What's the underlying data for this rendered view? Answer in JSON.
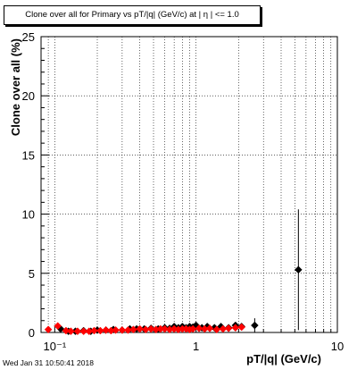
{
  "chart_data": {
    "type": "scatter",
    "title": "Clone  over all for Primary vs pT/|q| (GeV/c) at |  η | <= 1.0",
    "xlabel": "pT/|q| (GeV/c)",
    "ylabel": "Clone  over all (%)",
    "x_scale": "log",
    "xlim": [
      0.08,
      10
    ],
    "ylim": [
      0,
      25
    ],
    "x_tick_labels": [
      "10⁻¹",
      "1",
      "10"
    ],
    "x_tick_values": [
      0.1,
      1,
      10
    ],
    "y_tick_labels": [
      "0",
      "5",
      "10",
      "15",
      "20",
      "25"
    ],
    "y_tick_values": [
      0,
      5,
      10,
      15,
      20,
      25
    ],
    "grid": true,
    "series": [
      {
        "color": "#000000",
        "marker": "diamond",
        "x": [
          0.11,
          0.125,
          0.14,
          0.16,
          0.18,
          0.2,
          0.23,
          0.26,
          0.3,
          0.34,
          0.38,
          0.43,
          0.48,
          0.54,
          0.6,
          0.65,
          0.7,
          0.75,
          0.8,
          0.85,
          0.9,
          0.95,
          1.0,
          1.1,
          1.2,
          1.35,
          1.5,
          1.7,
          1.9,
          2.1,
          2.6,
          5.3
        ],
        "y": [
          0.3,
          0.1,
          0.1,
          0.15,
          0.1,
          0.2,
          0.2,
          0.25,
          0.2,
          0.3,
          0.3,
          0.3,
          0.35,
          0.3,
          0.4,
          0.35,
          0.5,
          0.4,
          0.5,
          0.4,
          0.5,
          0.45,
          0.6,
          0.4,
          0.5,
          0.4,
          0.5,
          0.4,
          0.6,
          0.5,
          0.6,
          5.3
        ],
        "y_err": [
          0.1,
          0.05,
          0.05,
          0.05,
          0.05,
          0.05,
          0.05,
          0.05,
          0.05,
          0.05,
          0.05,
          0.05,
          0.05,
          0.05,
          0.1,
          0.1,
          0.1,
          0.1,
          0.1,
          0.1,
          0.1,
          0.1,
          0.15,
          0.1,
          0.1,
          0.1,
          0.15,
          0.15,
          0.2,
          0.2,
          0.6,
          5.1
        ]
      },
      {
        "color": "#ff0000",
        "marker": "diamond",
        "x": [
          0.09,
          0.105,
          0.12,
          0.13,
          0.145,
          0.16,
          0.175,
          0.19,
          0.21,
          0.23,
          0.25,
          0.27,
          0.3,
          0.33,
          0.36,
          0.4,
          0.44,
          0.48,
          0.52,
          0.56,
          0.6,
          0.65,
          0.7,
          0.75,
          0.8,
          0.85,
          0.9,
          0.95,
          1.05,
          1.15,
          1.25,
          1.4,
          1.55,
          1.7,
          1.9,
          2.1
        ],
        "y": [
          0.25,
          0.55,
          0.15,
          0.1,
          0.1,
          0.1,
          0.1,
          0.15,
          0.15,
          0.2,
          0.15,
          0.2,
          0.2,
          0.2,
          0.25,
          0.3,
          0.25,
          0.3,
          0.25,
          0.3,
          0.3,
          0.25,
          0.3,
          0.25,
          0.3,
          0.3,
          0.25,
          0.3,
          0.35,
          0.3,
          0.35,
          0.25,
          0.3,
          0.35,
          0.4,
          0.45
        ]
      }
    ]
  },
  "footer": {
    "timestamp": "Wed Jan 31 10:50:41 2018"
  }
}
